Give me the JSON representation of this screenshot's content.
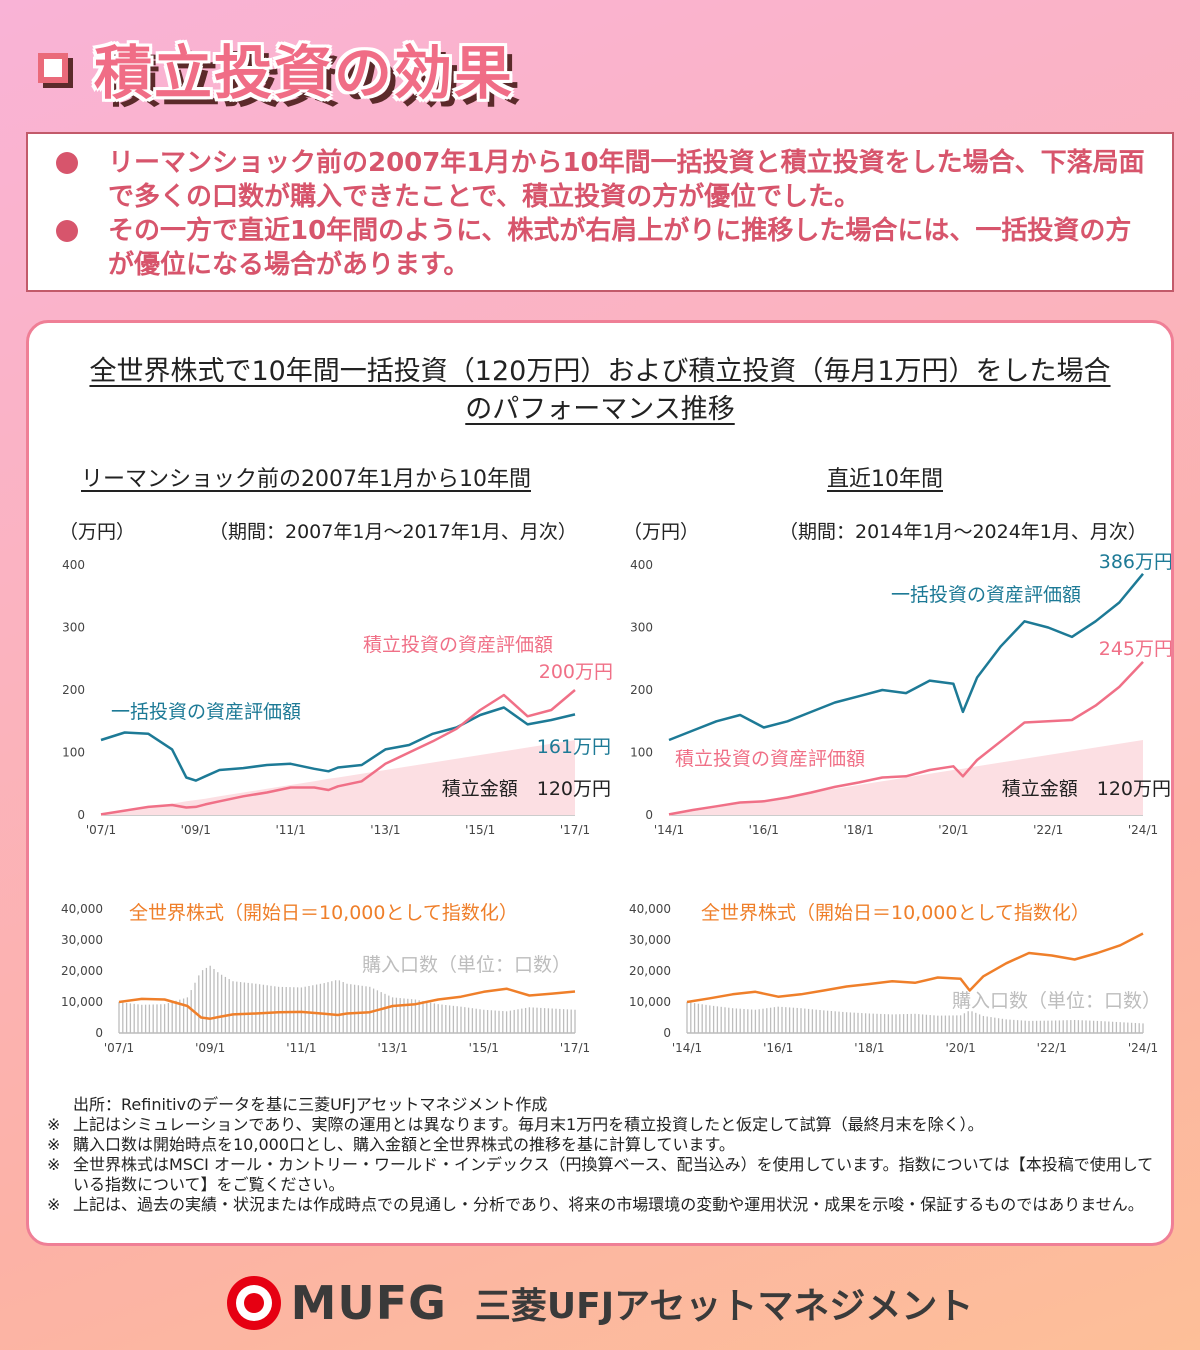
{
  "header": {
    "title": "積立投資の効果"
  },
  "bullets": [
    "リーマンショック前の2007年1月から10年間一括投資と積立投資をした場合、下落局面で多くの口数が購入できたことで、積立投資の方が優位でした。",
    "その一方で直近10年間のように、株式が右肩上がりに推移した場合には、一括投資の方が優位になる場合があります。"
  ],
  "panel": {
    "title_line1": "全世界株式で10年間一括投資（120万円）および積立投資（毎月1万円）をした場合",
    "title_line2": "のパフォーマンス推移"
  },
  "colors": {
    "lump": "#1d7a96",
    "dca": "#f07087",
    "invested_fill": "#fcdfe3",
    "index": "#ef7f2a",
    "units": "#bdbdbd"
  },
  "chart_data": [
    {
      "type": "line",
      "title": "リーマンショック前の2007年1月から10年間",
      "unit": "（万円）",
      "period": "（期間：2007年1月～2017年1月、月次）",
      "ylim": [
        0,
        400
      ],
      "yticks": [
        "0",
        "100",
        "200",
        "300",
        "400"
      ],
      "xticks": [
        "'07/1",
        "'09/1",
        "'11/1",
        "'13/1",
        "'15/1",
        "'17/1"
      ],
      "x": [
        2007.0,
        2007.5,
        2008.0,
        2008.5,
        2008.8,
        2009.0,
        2009.2,
        2009.5,
        2010.0,
        2010.5,
        2011.0,
        2011.5,
        2011.8,
        2012.0,
        2012.5,
        2013.0,
        2013.5,
        2014.0,
        2014.5,
        2015.0,
        2015.5,
        2016.0,
        2016.5,
        2017.0
      ],
      "series": [
        {
          "name": "一括投資の資産評価額",
          "values": [
            120,
            132,
            130,
            105,
            60,
            55,
            62,
            72,
            75,
            80,
            82,
            74,
            70,
            76,
            80,
            105,
            112,
            130,
            140,
            160,
            172,
            145,
            152,
            161
          ]
        },
        {
          "name": "積立投資の資産評価額",
          "values": [
            1,
            7,
            13,
            16,
            12,
            13,
            17,
            22,
            30,
            36,
            44,
            44,
            40,
            46,
            54,
            82,
            100,
            118,
            138,
            168,
            192,
            158,
            168,
            200
          ]
        },
        {
          "name": "積立金額",
          "values": [
            0,
            6,
            12,
            18,
            22,
            24,
            26,
            30,
            36,
            42,
            48,
            54,
            58,
            60,
            66,
            72,
            78,
            84,
            90,
            96,
            102,
            108,
            114,
            120
          ]
        }
      ],
      "annotations": {
        "dca_label": "積立投資の資産評価額",
        "dca_end": "200万円",
        "lump_label": "一括投資の資産評価額",
        "lump_end": "161万円",
        "invested_label": "積立金額　120万円"
      }
    },
    {
      "type": "line",
      "title": "直近10年間",
      "unit": "（万円）",
      "period": "（期間：2014年1月～2024年1月、月次）",
      "ylim": [
        0,
        400
      ],
      "yticks": [
        "0",
        "100",
        "200",
        "300",
        "400"
      ],
      "xticks": [
        "'14/1",
        "'16/1",
        "'18/1",
        "'20/1",
        "'22/1",
        "'24/1"
      ],
      "x": [
        2014.0,
        2014.5,
        2015.0,
        2015.5,
        2016.0,
        2016.5,
        2017.0,
        2017.5,
        2018.0,
        2018.5,
        2019.0,
        2019.5,
        2020.0,
        2020.2,
        2020.5,
        2021.0,
        2021.5,
        2022.0,
        2022.5,
        2023.0,
        2023.5,
        2024.0
      ],
      "series": [
        {
          "name": "一括投資の資産評価額",
          "values": [
            120,
            135,
            150,
            160,
            140,
            150,
            165,
            180,
            190,
            200,
            195,
            215,
            210,
            165,
            220,
            270,
            310,
            300,
            285,
            310,
            340,
            386
          ]
        },
        {
          "name": "積立投資の資産評価額",
          "values": [
            1,
            8,
            14,
            20,
            22,
            28,
            36,
            45,
            52,
            60,
            62,
            72,
            78,
            62,
            88,
            118,
            148,
            150,
            152,
            175,
            205,
            245
          ]
        },
        {
          "name": "積立金額",
          "values": [
            0,
            6,
            12,
            18,
            24,
            30,
            36,
            42,
            48,
            54,
            60,
            66,
            72,
            74,
            78,
            84,
            90,
            96,
            102,
            108,
            114,
            120
          ]
        }
      ],
      "annotations": {
        "lump_label": "一括投資の資産評価額",
        "lump_end": "386万円",
        "dca_label": "積立投資の資産評価額",
        "dca_end": "245万円",
        "invested_label": "積立金額　120万円"
      }
    },
    {
      "type": "line",
      "ylim": [
        0,
        40000
      ],
      "yticks": [
        "0",
        "10,000",
        "20,000",
        "30,000",
        "40,000"
      ],
      "xticks": [
        "'07/1",
        "'09/1",
        "'11/1",
        "'13/1",
        "'15/1",
        "'17/1"
      ],
      "x": [
        2007.0,
        2007.5,
        2008.0,
        2008.5,
        2008.8,
        2009.0,
        2009.2,
        2009.5,
        2010.0,
        2010.5,
        2011.0,
        2011.5,
        2011.8,
        2012.0,
        2012.5,
        2013.0,
        2013.5,
        2014.0,
        2014.5,
        2015.0,
        2015.5,
        2016.0,
        2016.5,
        2017.0
      ],
      "series": [
        {
          "name": "全世界株式（開始日＝10,000として指数化）",
          "values": [
            10000,
            11000,
            10800,
            8700,
            5000,
            4600,
            5200,
            6000,
            6300,
            6700,
            6800,
            6200,
            5800,
            6300,
            6700,
            8700,
            9300,
            10800,
            11700,
            13300,
            14300,
            12100,
            12700,
            13400
          ]
        },
        {
          "name": "購入口数（単位：口数）",
          "values": [
            10000,
            9100,
            9300,
            11500,
            20000,
            21700,
            19200,
            16700,
            15900,
            14900,
            14700,
            16100,
            17200,
            15900,
            14900,
            11500,
            10800,
            9300,
            8500,
            7500,
            7000,
            8300,
            7900,
            7500
          ]
        }
      ],
      "annotations": {
        "index_label": "全世界株式（開始日＝10,000として指数化）",
        "units_label": "購入口数（単位：口数）"
      }
    },
    {
      "type": "line",
      "ylim": [
        0,
        40000
      ],
      "yticks": [
        "0",
        "10,000",
        "20,000",
        "30,000",
        "40,000"
      ],
      "xticks": [
        "'14/1",
        "'16/1",
        "'18/1",
        "'20/1",
        "'22/1",
        "'24/1"
      ],
      "x": [
        2014.0,
        2014.5,
        2015.0,
        2015.5,
        2016.0,
        2016.5,
        2017.0,
        2017.5,
        2018.0,
        2018.5,
        2019.0,
        2019.5,
        2020.0,
        2020.2,
        2020.5,
        2021.0,
        2021.5,
        2022.0,
        2022.5,
        2023.0,
        2023.5,
        2024.0
      ],
      "series": [
        {
          "name": "全世界株式（開始日＝10,000として指数化）",
          "values": [
            10000,
            11200,
            12500,
            13300,
            11700,
            12500,
            13700,
            15000,
            15800,
            16700,
            16200,
            17900,
            17500,
            13700,
            18300,
            22500,
            25800,
            25000,
            23700,
            25800,
            28300,
            32100
          ]
        },
        {
          "name": "購入口数（単位：口数）",
          "values": [
            10000,
            8900,
            8000,
            7500,
            8500,
            8000,
            7300,
            6700,
            6300,
            6000,
            6200,
            5600,
            5700,
            7300,
            5500,
            4400,
            3900,
            4000,
            4200,
            3900,
            3500,
            3100
          ]
        }
      ],
      "annotations": {
        "index_label": "全世界株式（開始日＝10,000として指数化）",
        "units_label": "購入口数（単位：口数）"
      }
    }
  ],
  "notes": {
    "source": "出所：Refinitivのデータを基に三菱UFJアセットマネジメント作成",
    "mark": "※",
    "items": [
      "上記はシミュレーションであり、実際の運用とは異なります。毎月末1万円を積立投資したと仮定して試算（最終月末を除く）。",
      "購入口数は開始時点を10,000口とし、購入金額と全世界株式の推移を基に計算しています。",
      "全世界株式はMSCI オール・カントリー・ワールド・インデックス（円換算ベース、配当込み）を使用しています。指数については【本投稿で使用している指数について】をご覧ください。",
      "上記は、過去の実績・状況または作成時点での見通し・分析であり、将来の市場環境の変動や運用状況・成果を示唆・保証するものではありません。"
    ]
  },
  "footer": {
    "logo_text": "MUFG",
    "company": "三菱UFJアセットマネジメント"
  }
}
